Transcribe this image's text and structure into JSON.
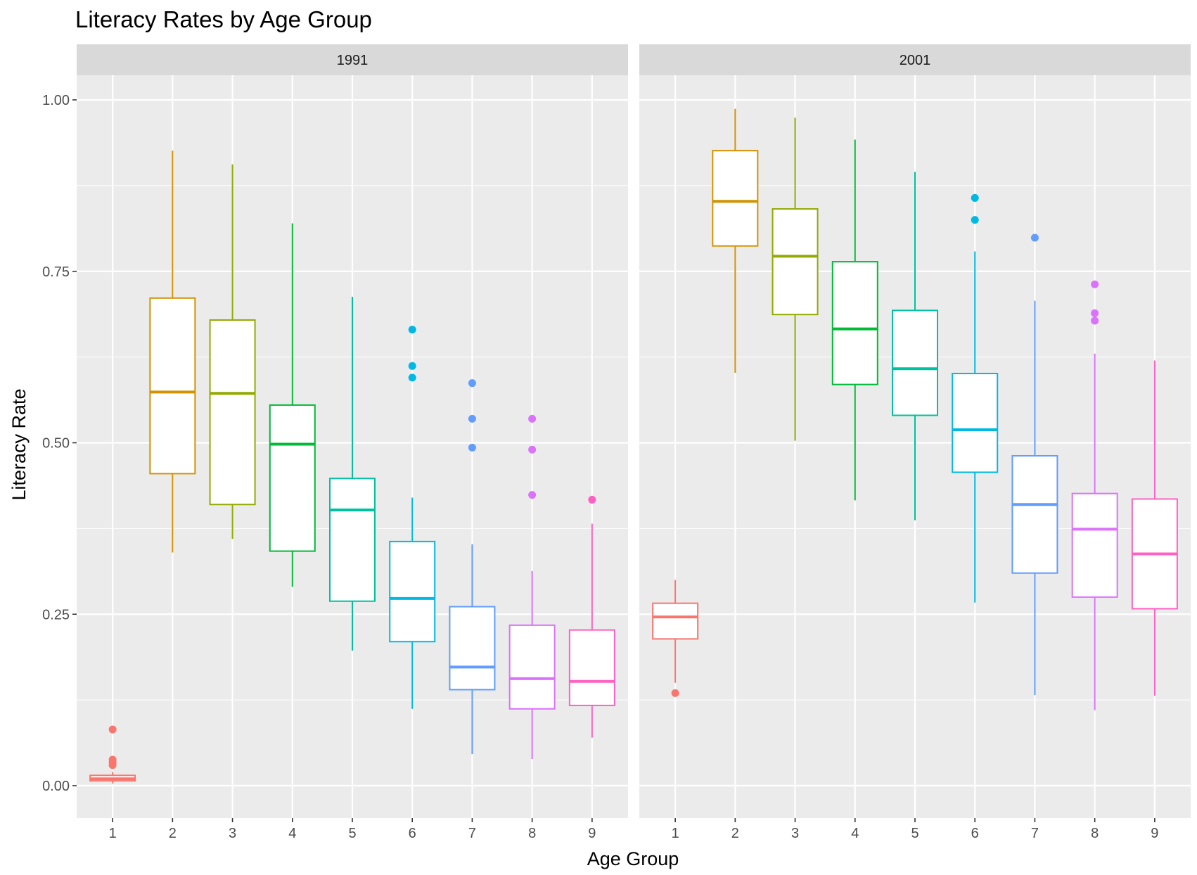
{
  "chart_data": {
    "type": "boxplot",
    "title": "Literacy Rates by Age Group",
    "xlabel": "Age Group",
    "ylabel": "Literacy Rate",
    "ylim": [
      -0.05,
      1.05
    ],
    "y_ticks": [
      0.0,
      0.25,
      0.5,
      0.75,
      1.0
    ],
    "y_tick_labels": [
      "0.00",
      "0.25",
      "0.50",
      "0.75",
      "1.00"
    ],
    "categories": [
      "1",
      "2",
      "3",
      "4",
      "5",
      "6",
      "7",
      "8",
      "9"
    ],
    "colors": [
      "#F8766D",
      "#D39200",
      "#93AA00",
      "#00BA38",
      "#00C19F",
      "#00B9E3",
      "#619CFF",
      "#DB72FB",
      "#FF61C3"
    ],
    "grid": true,
    "legend": "none",
    "facets": [
      {
        "label": "1991",
        "boxes": [
          {
            "group": "1",
            "lower": 0.003,
            "q1": 0.007,
            "median": 0.01,
            "q3": 0.015,
            "upper": 0.02,
            "outliers": [
              0.082,
              0.038,
              0.034,
              0.03
            ]
          },
          {
            "group": "2",
            "lower": 0.34,
            "q1": 0.455,
            "median": 0.574,
            "q3": 0.711,
            "upper": 0.926,
            "outliers": []
          },
          {
            "group": "3",
            "lower": 0.36,
            "q1": 0.41,
            "median": 0.572,
            "q3": 0.679,
            "upper": 0.906,
            "outliers": []
          },
          {
            "group": "4",
            "lower": 0.29,
            "q1": 0.342,
            "median": 0.498,
            "q3": 0.555,
            "upper": 0.82,
            "outliers": []
          },
          {
            "group": "5",
            "lower": 0.197,
            "q1": 0.269,
            "median": 0.402,
            "q3": 0.448,
            "upper": 0.713,
            "outliers": []
          },
          {
            "group": "6",
            "lower": 0.112,
            "q1": 0.21,
            "median": 0.273,
            "q3": 0.356,
            "upper": 0.42,
            "outliers": [
              0.665,
              0.612,
              0.595
            ]
          },
          {
            "group": "7",
            "lower": 0.046,
            "q1": 0.14,
            "median": 0.173,
            "q3": 0.261,
            "upper": 0.352,
            "outliers": [
              0.587,
              0.535,
              0.493
            ]
          },
          {
            "group": "8",
            "lower": 0.039,
            "q1": 0.112,
            "median": 0.156,
            "q3": 0.234,
            "upper": 0.313,
            "outliers": [
              0.535,
              0.49,
              0.424
            ]
          },
          {
            "group": "9",
            "lower": 0.07,
            "q1": 0.117,
            "median": 0.152,
            "q3": 0.227,
            "upper": 0.382,
            "outliers": [
              0.417
            ]
          }
        ]
      },
      {
        "label": "2001",
        "boxes": [
          {
            "group": "1",
            "lower": 0.15,
            "q1": 0.214,
            "median": 0.246,
            "q3": 0.266,
            "upper": 0.3,
            "outliers": [
              0.135
            ]
          },
          {
            "group": "2",
            "lower": 0.602,
            "q1": 0.787,
            "median": 0.852,
            "q3": 0.926,
            "upper": 0.987,
            "outliers": []
          },
          {
            "group": "3",
            "lower": 0.503,
            "q1": 0.687,
            "median": 0.772,
            "q3": 0.841,
            "upper": 0.974,
            "outliers": []
          },
          {
            "group": "4",
            "lower": 0.416,
            "q1": 0.585,
            "median": 0.666,
            "q3": 0.764,
            "upper": 0.942,
            "outliers": []
          },
          {
            "group": "5",
            "lower": 0.387,
            "q1": 0.54,
            "median": 0.608,
            "q3": 0.693,
            "upper": 0.895,
            "outliers": []
          },
          {
            "group": "6",
            "lower": 0.267,
            "q1": 0.457,
            "median": 0.519,
            "q3": 0.601,
            "upper": 0.779,
            "outliers": [
              0.857,
              0.825
            ]
          },
          {
            "group": "7",
            "lower": 0.132,
            "q1": 0.31,
            "median": 0.41,
            "q3": 0.481,
            "upper": 0.707,
            "outliers": [
              0.799
            ]
          },
          {
            "group": "8",
            "lower": 0.11,
            "q1": 0.275,
            "median": 0.374,
            "q3": 0.426,
            "upper": 0.63,
            "outliers": [
              0.731,
              0.689,
              0.678
            ]
          },
          {
            "group": "9",
            "lower": 0.131,
            "q1": 0.258,
            "median": 0.338,
            "q3": 0.418,
            "upper": 0.62,
            "outliers": []
          }
        ]
      }
    ]
  }
}
